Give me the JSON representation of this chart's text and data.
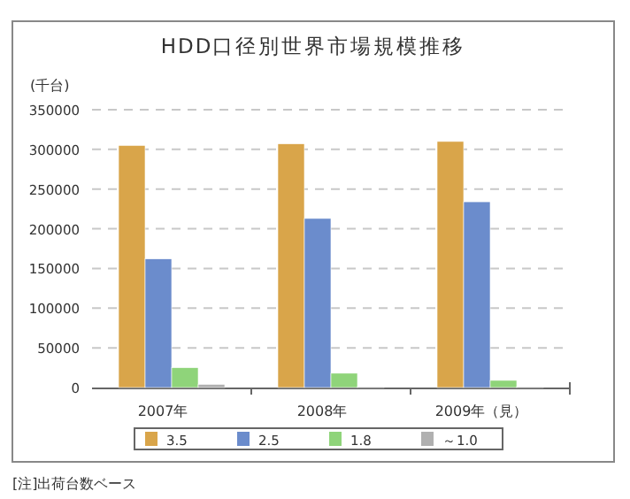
{
  "chart_data": {
    "type": "bar",
    "title": "HDD口径別世界市場規模推移",
    "ylabel": "(千台)",
    "categories": [
      "2007年",
      "2008年",
      "2009年（見）"
    ],
    "series": [
      {
        "name": "3.5",
        "color": "#d9a54a",
        "values": [
          305000,
          307000,
          310000
        ]
      },
      {
        "name": "2.5",
        "color": "#6b8ccc",
        "values": [
          162000,
          213000,
          234000
        ]
      },
      {
        "name": "1.8",
        "color": "#8fd47a",
        "values": [
          25000,
          18000,
          9000
        ]
      },
      {
        "name": "～1.0",
        "color": "#b0b0b0",
        "values": [
          4000,
          1000,
          1000
        ]
      }
    ],
    "ylim": [
      0,
      350000
    ],
    "yticks": [
      0,
      50000,
      100000,
      150000,
      200000,
      250000,
      300000,
      350000
    ],
    "grid": "y",
    "legend": "bottom",
    "annotations": [
      "[注]出荷台数ベース"
    ]
  }
}
